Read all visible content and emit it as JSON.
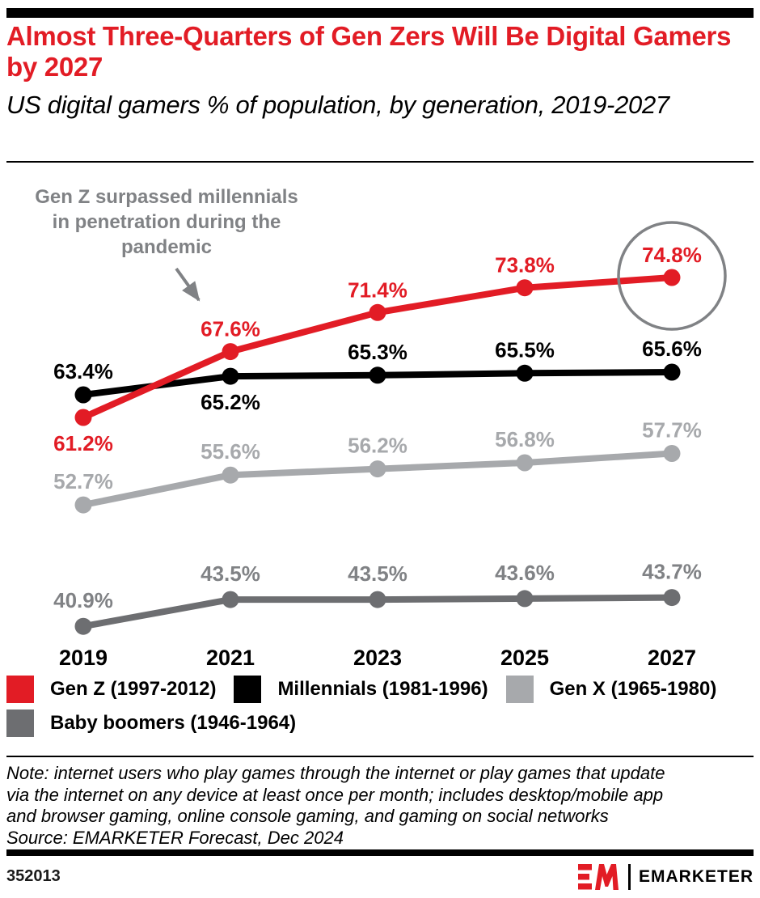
{
  "header": {
    "title": "Almost Three-Quarters of Gen Zers Will Be Digital Gamers by 2027",
    "subtitle": "US digital gamers % of population, by generation, 2019-2027",
    "title_color": "#E21C25"
  },
  "chart_data": {
    "type": "line",
    "x": [
      "2019",
      "2021",
      "2023",
      "2025",
      "2027"
    ],
    "unit": "%",
    "grid": false,
    "y_axis_shown": false,
    "legend_position": "bottom",
    "series": [
      {
        "name": "Gen Z (1997-2012)",
        "color": "#E21C25",
        "label_color": "#E21C25",
        "values": [
          61.2,
          67.6,
          71.4,
          73.8,
          74.8
        ],
        "label_positions": [
          "below",
          "above",
          "above",
          "above",
          "above"
        ]
      },
      {
        "name": "Millennials (1981-1996)",
        "color": "#000000",
        "label_color": "#000000",
        "values": [
          63.4,
          65.2,
          65.3,
          65.5,
          65.6
        ],
        "label_positions": [
          "above",
          "below",
          "above",
          "above",
          "above"
        ]
      },
      {
        "name": "Gen X (1965-1980)",
        "color": "#A7A9AC",
        "label_color": "#A7A9AC",
        "values": [
          52.7,
          55.6,
          56.2,
          56.8,
          57.7
        ],
        "label_positions": [
          "above",
          "above",
          "above",
          "above",
          "above"
        ]
      },
      {
        "name": "Baby boomers (1946-1964)",
        "color": "#6D6E71",
        "label_color": "#808285",
        "values": [
          40.9,
          43.5,
          43.5,
          43.6,
          43.7
        ],
        "label_positions": [
          "above",
          "above",
          "above",
          "above",
          "above"
        ]
      }
    ],
    "annotation": {
      "lines": [
        "Gen Z surpassed millennials",
        "in penetration during the",
        "pandemic"
      ],
      "color": "#808285"
    },
    "highlight_circle": {
      "series": "Gen Z (1997-2012)",
      "x": "2027",
      "value": 74.8,
      "color": "#808285"
    }
  },
  "notes": {
    "lines": [
      "Note: internet users who play games through the internet or play games that update",
      "via the internet on any device at least once per month; includes desktop/mobile app",
      "and browser gaming, online console gaming, and gaming on social networks"
    ],
    "source": "Source: EMARKETER Forecast, Dec 2024"
  },
  "footer": {
    "chart_id": "352013",
    "brand": "EMARKETER",
    "logo": "EM",
    "logo_color": "#E21C25"
  }
}
